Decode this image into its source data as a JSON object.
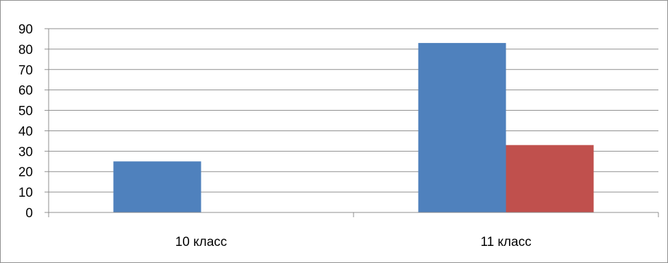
{
  "chart_data": {
    "type": "bar",
    "categories": [
      "10 класс",
      "11 класс"
    ],
    "series": [
      {
        "values": [
          25,
          83
        ],
        "color": "#4f81bd"
      },
      {
        "values": [
          0,
          33
        ],
        "color": "#c0504d"
      }
    ],
    "title": "",
    "xlabel": "",
    "ylabel": "",
    "ylim": [
      0,
      90
    ],
    "yticks": [
      "0",
      "10",
      "20",
      "30",
      "40",
      "50",
      "60",
      "70",
      "80",
      "90"
    ],
    "grid": true,
    "legend": "none"
  }
}
